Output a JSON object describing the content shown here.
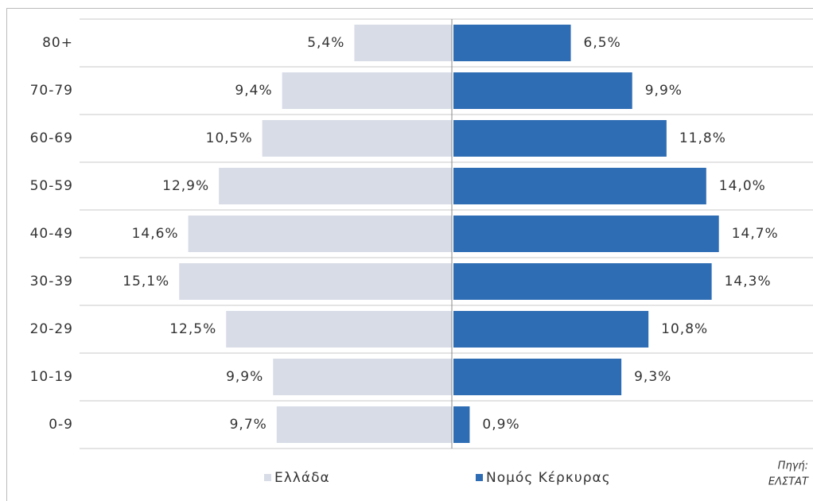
{
  "chart_data": {
    "type": "pyramid",
    "categories": [
      "80+",
      "70-79",
      "60-69",
      "50-59",
      "40-49",
      "30-39",
      "20-29",
      "10-19",
      "0-9"
    ],
    "series": [
      {
        "name": "Ελλάδα",
        "color": "#d8dce6",
        "side": "left",
        "values": [
          5.4,
          9.4,
          10.5,
          12.9,
          14.6,
          15.1,
          12.5,
          9.9,
          9.7
        ],
        "value_labels": [
          "5,4%",
          "9,4%",
          "10,5%",
          "12,9%",
          "14,6%",
          "15,1%",
          "12,5%",
          "9,9%",
          "9,7%"
        ]
      },
      {
        "name": "Νομός Κέρκυρας",
        "color": "#2e6db4",
        "side": "right",
        "values": [
          6.5,
          9.9,
          11.8,
          14.0,
          14.7,
          14.3,
          10.8,
          9.3,
          0.9
        ],
        "value_labels": [
          "6,5%",
          "9,9%",
          "11,8%",
          "14,0%",
          "14,7%",
          "14,3%",
          "10,8%",
          "9,3%",
          "0,9%"
        ]
      }
    ],
    "source": [
      "Πηγή:",
      "ΕΛΣΤΑΤ"
    ]
  }
}
